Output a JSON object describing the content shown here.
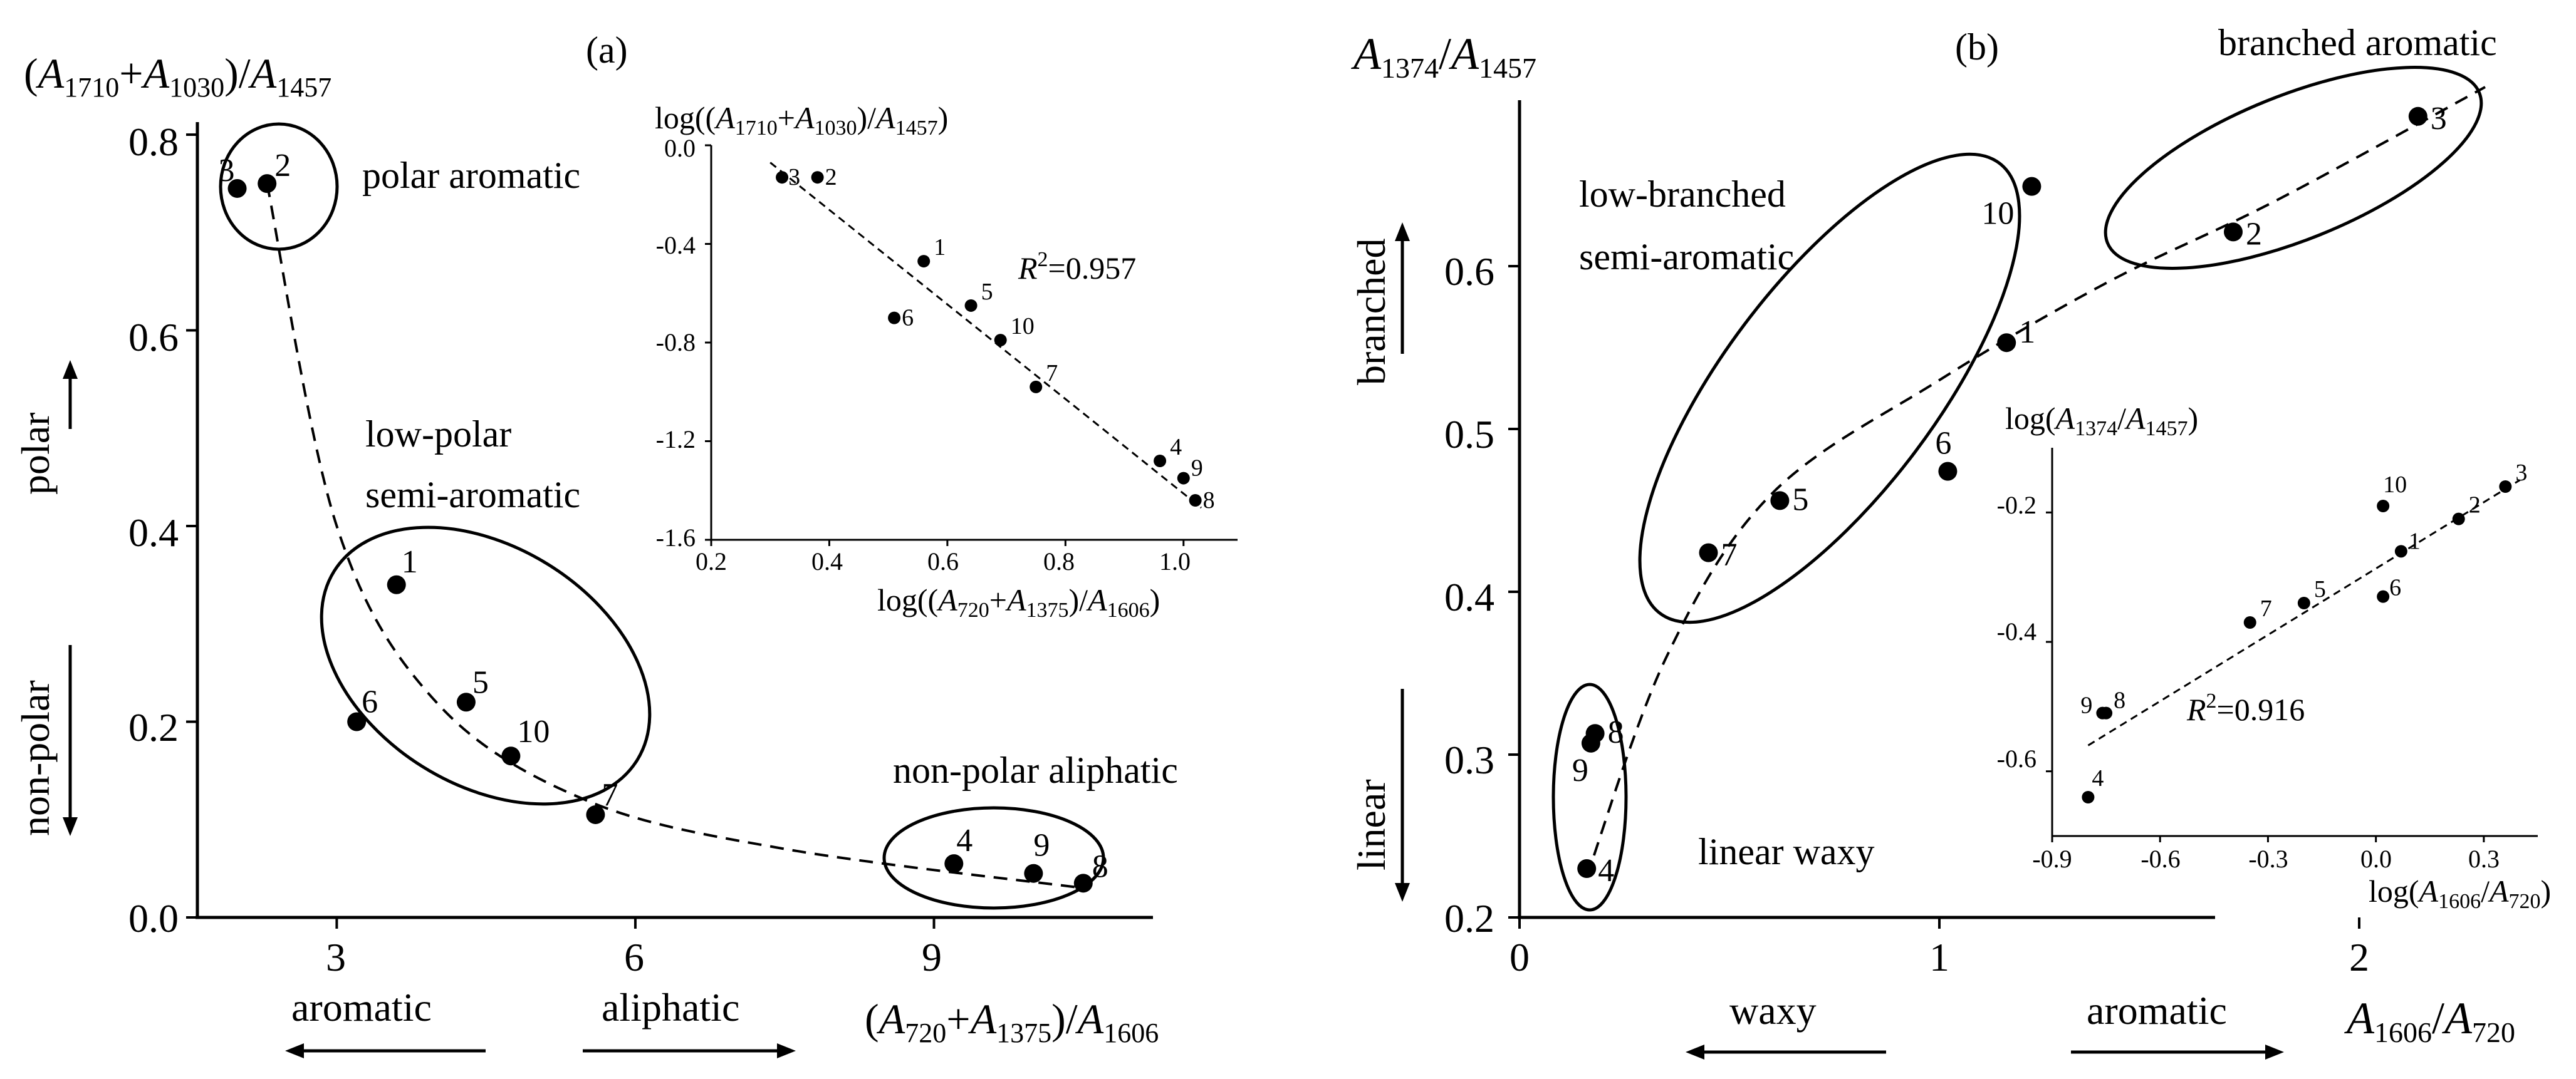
{
  "chart_data": [
    {
      "type": "scatter",
      "panel_label": "(a)",
      "ylabel": "(A1710+A1030)/A1457",
      "xlabel": "(A720+A1375)/A1606",
      "xlim": [
        1.2,
        11.5
      ],
      "ylim": [
        0,
        0.8
      ],
      "xticks": [
        "3",
        "6",
        "9"
      ],
      "yticks": [
        "0.0",
        "0.2",
        "0.4",
        "0.6",
        "0.8"
      ],
      "axis_arrows": {
        "up": "polar",
        "down": "non-polar",
        "left": "aromatic",
        "right": "aliphatic"
      },
      "points": [
        {
          "label": "1",
          "x": 3.6,
          "y": 0.34
        },
        {
          "label": "2",
          "x": 2.3,
          "y": 0.75
        },
        {
          "label": "3",
          "x": 2.0,
          "y": 0.745
        },
        {
          "label": "4",
          "x": 9.2,
          "y": 0.055
        },
        {
          "label": "5",
          "x": 4.3,
          "y": 0.22
        },
        {
          "label": "6",
          "x": 3.2,
          "y": 0.2
        },
        {
          "label": "7",
          "x": 5.6,
          "y": 0.105
        },
        {
          "label": "8",
          "x": 10.5,
          "y": 0.035
        },
        {
          "label": "9",
          "x": 10.0,
          "y": 0.045
        },
        {
          "label": "10",
          "x": 4.75,
          "y": 0.165
        }
      ],
      "groups": [
        "polar aromatic",
        "low-polar semi-aromatic",
        "non-polar aliphatic"
      ],
      "trend_curve": [
        [
          2.3,
          0.75
        ],
        [
          3.0,
          0.4
        ],
        [
          4.0,
          0.22
        ],
        [
          5.5,
          0.12
        ],
        [
          7.5,
          0.07
        ],
        [
          10.5,
          0.03
        ]
      ],
      "inset": {
        "xlabel": "log((A720+A1375)/A1606)",
        "ylabel": "log((A1710+A1030)/A1457)",
        "xlim": [
          0.2,
          1.1
        ],
        "ylim": [
          -1.6,
          0.0
        ],
        "xticks": [
          "0.2",
          "0.4",
          "0.6",
          "0.8",
          "1.0"
        ],
        "yticks": [
          "0.0",
          "-0.4",
          "-0.8",
          "-1.2",
          "-1.6"
        ],
        "annotation": "R2=0.957",
        "points": [
          {
            "label": "3",
            "x": 0.32,
            "y": -0.13
          },
          {
            "label": "2",
            "x": 0.38,
            "y": -0.13
          },
          {
            "label": "1",
            "x": 0.56,
            "y": -0.47
          },
          {
            "label": "6",
            "x": 0.51,
            "y": -0.7
          },
          {
            "label": "5",
            "x": 0.64,
            "y": -0.65
          },
          {
            "label": "10",
            "x": 0.69,
            "y": -0.79
          },
          {
            "label": "7",
            "x": 0.75,
            "y": -0.98
          },
          {
            "label": "4",
            "x": 0.96,
            "y": -1.28
          },
          {
            "label": "9",
            "x": 1.0,
            "y": -1.35
          },
          {
            "label": "8",
            "x": 1.02,
            "y": -1.44
          }
        ],
        "fit_line": [
          [
            0.3,
            -0.07
          ],
          [
            1.03,
            -1.47
          ]
        ]
      }
    },
    {
      "type": "scatter",
      "panel_label": "(b)",
      "ylabel": "A1374/A1457",
      "xlabel": "A1606/A720",
      "xlim": [
        0,
        2.3
      ],
      "ylim": [
        0.2,
        0.7
      ],
      "xticks": [
        "0",
        "1",
        "2"
      ],
      "yticks": [
        "0.2",
        "0.3",
        "0.4",
        "0.5",
        "0.6"
      ],
      "axis_arrows": {
        "up": "branched",
        "down": "linear",
        "left": "waxy",
        "right": "aromatic"
      },
      "points": [
        {
          "label": "1",
          "x": 1.16,
          "y": 0.553
        },
        {
          "label": "2",
          "x": 1.7,
          "y": 0.621
        },
        {
          "label": "3",
          "x": 2.14,
          "y": 0.692
        },
        {
          "label": "4",
          "x": 0.16,
          "y": 0.23
        },
        {
          "label": "5",
          "x": 0.62,
          "y": 0.456
        },
        {
          "label": "6",
          "x": 1.02,
          "y": 0.474
        },
        {
          "label": "7",
          "x": 0.45,
          "y": 0.424
        },
        {
          "label": "8",
          "x": 0.18,
          "y": 0.313
        },
        {
          "label": "9",
          "x": 0.17,
          "y": 0.307
        },
        {
          "label": "10",
          "x": 1.22,
          "y": 0.649
        }
      ],
      "groups": [
        "branched aromatic",
        "low-branched semi-aromatic",
        "linear waxy"
      ],
      "trend_curve": [
        [
          0.16,
          0.225
        ],
        [
          0.35,
          0.36
        ],
        [
          0.6,
          0.46
        ],
        [
          1.0,
          0.53
        ],
        [
          1.4,
          0.59
        ],
        [
          1.8,
          0.64
        ],
        [
          2.3,
          0.71
        ]
      ],
      "inset": {
        "xlabel": "log(A1606/A720)",
        "ylabel": "log(A1374/A1457)",
        "xlim": [
          -0.9,
          0.45
        ],
        "ylim": [
          -0.7,
          -0.1
        ],
        "xticks": [
          "-0.9",
          "-0.6",
          "-0.3",
          "0.0",
          "0.3"
        ],
        "yticks": [
          "-0.2",
          "-0.4",
          "-0.6"
        ],
        "annotation": "R2=0.916",
        "points": [
          {
            "label": "10",
            "x": 0.02,
            "y": -0.19
          },
          {
            "label": "3",
            "x": 0.36,
            "y": -0.16
          },
          {
            "label": "2",
            "x": 0.23,
            "y": -0.21
          },
          {
            "label": "1",
            "x": 0.07,
            "y": -0.26
          },
          {
            "label": "6",
            "x": 0.02,
            "y": -0.33
          },
          {
            "label": "5",
            "x": -0.2,
            "y": -0.34
          },
          {
            "label": "7",
            "x": -0.35,
            "y": -0.37
          },
          {
            "label": "8",
            "x": -0.75,
            "y": -0.51
          },
          {
            "label": "9",
            "x": -0.76,
            "y": -0.51
          },
          {
            "label": "4",
            "x": -0.8,
            "y": -0.64
          }
        ],
        "fit_line": [
          [
            -0.8,
            -0.56
          ],
          [
            0.4,
            -0.15
          ]
        ]
      }
    }
  ],
  "text": {
    "a_label": "(a)",
    "b_label": "(b)",
    "a_polar_aromatic": "polar aromatic",
    "a_low_polar_1": "low-polar",
    "a_low_polar_2": "semi-aromatic",
    "a_nonpolar_aliphatic": "non-polar aliphatic",
    "a_arrow_polar": "polar",
    "a_arrow_nonpolar": "non-polar",
    "a_arrow_aromatic": "aromatic",
    "a_arrow_aliphatic": "aliphatic",
    "a_inset_r2_r": "R",
    "a_inset_r2_rest": "=0.957",
    "b_branched_aromatic": "branched aromatic",
    "b_low_branched_1": "low-branched",
    "b_low_branched_2": "semi-aromatic",
    "b_linear_waxy": "linear waxy",
    "b_arrow_branched": "branched",
    "b_arrow_linear": "linear",
    "b_arrow_waxy": "waxy",
    "b_arrow_aromatic": "aromatic",
    "b_inset_r2_r": "R",
    "b_inset_r2_rest": "=0.916"
  }
}
